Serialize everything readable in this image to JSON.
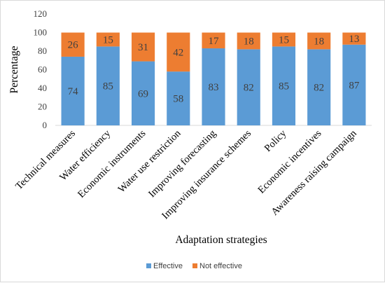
{
  "chart_data": {
    "type": "bar",
    "stacked": true,
    "categories": [
      "Technical measures",
      "Water efficiency",
      "Economic instruments",
      "Water use restriction",
      "Improving forecasting",
      "Improving insurance schemes",
      "Policy",
      "Economic incentives",
      "Awareness raising campaign"
    ],
    "series": [
      {
        "name": "Effective",
        "color": "#5b9bd5",
        "values": [
          74,
          85,
          69,
          58,
          83,
          82,
          85,
          82,
          87
        ]
      },
      {
        "name": "Not effective",
        "color": "#ed7d31",
        "values": [
          26,
          15,
          31,
          42,
          17,
          18,
          15,
          18,
          13
        ]
      }
    ],
    "xlabel": "Adaptation strategies",
    "ylabel": "Percentage",
    "ylim": [
      0,
      120
    ],
    "yticks": [
      0,
      20,
      40,
      60,
      80,
      100,
      120
    ],
    "grid": false,
    "legend": "bottom"
  }
}
